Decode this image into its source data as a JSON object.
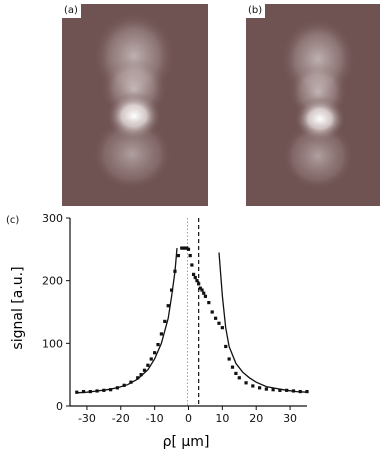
{
  "figure": {
    "panel_labels": {
      "a": "(a)",
      "b": "(b)",
      "c": "(c)"
    }
  },
  "images": {
    "a": {
      "description_icon": "false-color-intensity-map",
      "background_color": "#6f5252",
      "highlight_color": "#ffffff"
    },
    "b": {
      "description_icon": "false-color-intensity-map",
      "background_color": "#6f5252",
      "highlight_color": "#ffffff"
    }
  },
  "chart_data": {
    "type": "scatter",
    "xlabel": "ρ[ μm]",
    "ylabel": "signal [a.u.]",
    "xlim": [
      -35,
      35
    ],
    "ylim": [
      0,
      300
    ],
    "xticks": [
      -30,
      -20,
      -10,
      0,
      10,
      20,
      30
    ],
    "yticks": [
      0,
      100,
      200,
      300
    ],
    "x_tick_labels": [
      "-30",
      "-20",
      "-10",
      "0",
      "10",
      "20",
      "30"
    ],
    "y_tick_labels": [
      "0",
      "100",
      "200",
      "300"
    ],
    "grid": false,
    "series": [
      {
        "kind": "points",
        "x": [
          -33,
          -31,
          -29,
          -27,
          -25,
          -23,
          -21,
          -19,
          -17,
          -15,
          -14,
          -13,
          -12,
          -11,
          -10,
          -9,
          -8,
          -7,
          -6,
          -5,
          -4,
          -3,
          -2,
          -1.5,
          -1,
          -0.5,
          0,
          0.5,
          1,
          1.5,
          2,
          2.5,
          3,
          3.5,
          4,
          4.5,
          5,
          6,
          7,
          8,
          9,
          10,
          11,
          12,
          13,
          14,
          15,
          17,
          19,
          21,
          23,
          25,
          27,
          29,
          31,
          33,
          35
        ],
        "y": [
          22,
          23,
          23,
          24,
          25,
          26,
          29,
          33,
          38,
          45,
          50,
          57,
          65,
          75,
          85,
          98,
          115,
          135,
          160,
          185,
          215,
          240,
          252,
          252,
          252,
          252,
          250,
          240,
          225,
          210,
          205,
          200,
          195,
          188,
          185,
          180,
          175,
          165,
          150,
          140,
          132,
          125,
          95,
          75,
          62,
          52,
          45,
          37,
          32,
          29,
          27,
          26,
          25,
          25,
          24,
          23,
          23
        ]
      },
      {
        "kind": "curve",
        "x": [
          -33,
          -30,
          -27,
          -24,
          -21,
          -18,
          -15,
          -12,
          -10,
          -8,
          -6,
          -5,
          -4,
          -3.4
        ],
        "y": [
          21,
          22,
          24,
          26,
          29,
          34,
          43,
          58,
          75,
          100,
          140,
          175,
          215,
          252
        ]
      },
      {
        "kind": "curve",
        "x": [
          9,
          10,
          11,
          12,
          14,
          16,
          18,
          20,
          23,
          26,
          29,
          32,
          35
        ],
        "y": [
          245,
          175,
          125,
          95,
          68,
          54,
          45,
          38,
          31,
          28,
          25,
          23,
          22
        ]
      }
    ],
    "vlines": [
      {
        "x": 3,
        "style": "dashed"
      },
      {
        "x": -0.3,
        "style": "dotted"
      }
    ]
  }
}
